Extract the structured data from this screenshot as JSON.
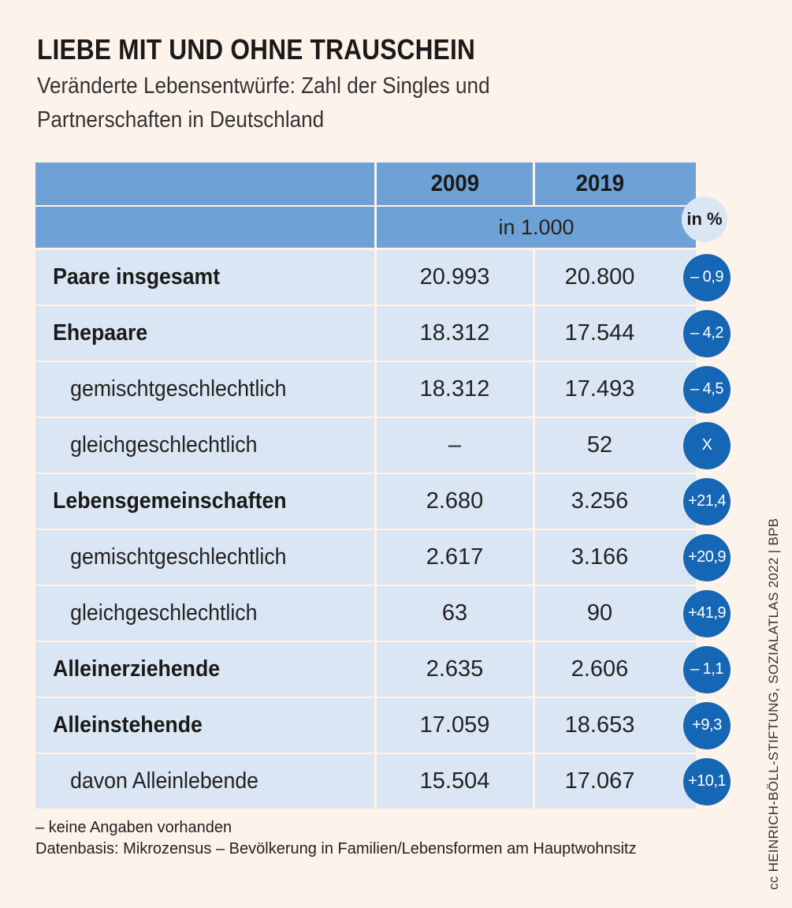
{
  "title": "LIEBE MIT UND OHNE TRAUSCHEIN",
  "subtitle": "Veränderte Lebensentwürfe: Zahl der Singles und Partnerschaften in Deutschland",
  "colors": {
    "background": "#fdf3ea",
    "header": "#6ea2d6",
    "row": "#dbe6f4",
    "badge": "#1566b4"
  },
  "chart_data": {
    "type": "table",
    "title": "LIEBE MIT UND OHNE TRAUSCHEIN",
    "columns": [
      "2009",
      "2019",
      "in %"
    ],
    "unit": "in 1.000",
    "change_header": "in %",
    "rows": [
      {
        "label": "Paare insgesamt",
        "level": 0,
        "v2009": "20.993",
        "v2019": "20.800",
        "change": "– 0,9"
      },
      {
        "label": "Ehepaare",
        "level": 0,
        "v2009": "18.312",
        "v2019": "17.544",
        "change": "– 4,2"
      },
      {
        "label": "gemischtgeschlechtlich",
        "level": 1,
        "v2009": "18.312",
        "v2019": "17.493",
        "change": "– 4,5"
      },
      {
        "label": "gleichgeschlechtlich",
        "level": 1,
        "v2009": "–",
        "v2019": "52",
        "change": "X"
      },
      {
        "label": "Lebensgemeinschaften",
        "level": 0,
        "v2009": "2.680",
        "v2019": "3.256",
        "change": "+21,4"
      },
      {
        "label": "gemischtgeschlechtlich",
        "level": 1,
        "v2009": "2.617",
        "v2019": "3.166",
        "change": "+20,9"
      },
      {
        "label": "gleichgeschlechtlich",
        "level": 1,
        "v2009": "63",
        "v2019": "90",
        "change": "+41,9"
      },
      {
        "label": "Alleinerziehende",
        "level": 0,
        "v2009": "2.635",
        "v2019": "2.606",
        "change": "– 1,1"
      },
      {
        "label": "Alleinstehende",
        "level": 0,
        "v2009": "17.059",
        "v2019": "18.653",
        "change": "+9,3"
      },
      {
        "label": "davon Alleinlebende",
        "level": 1,
        "v2009": "15.504",
        "v2019": "17.067",
        "change": "+10,1"
      }
    ]
  },
  "notes": {
    "line1": "– keine Angaben vorhanden",
    "line2": "Datenbasis: Mikrozensus – Bevölkerung in Familien/Lebensformen am Hauptwohnsitz"
  },
  "credit": "cc HEINRICH-BÖLL-STIFTUNG, SOZIALATLAS 2022 | BPB"
}
